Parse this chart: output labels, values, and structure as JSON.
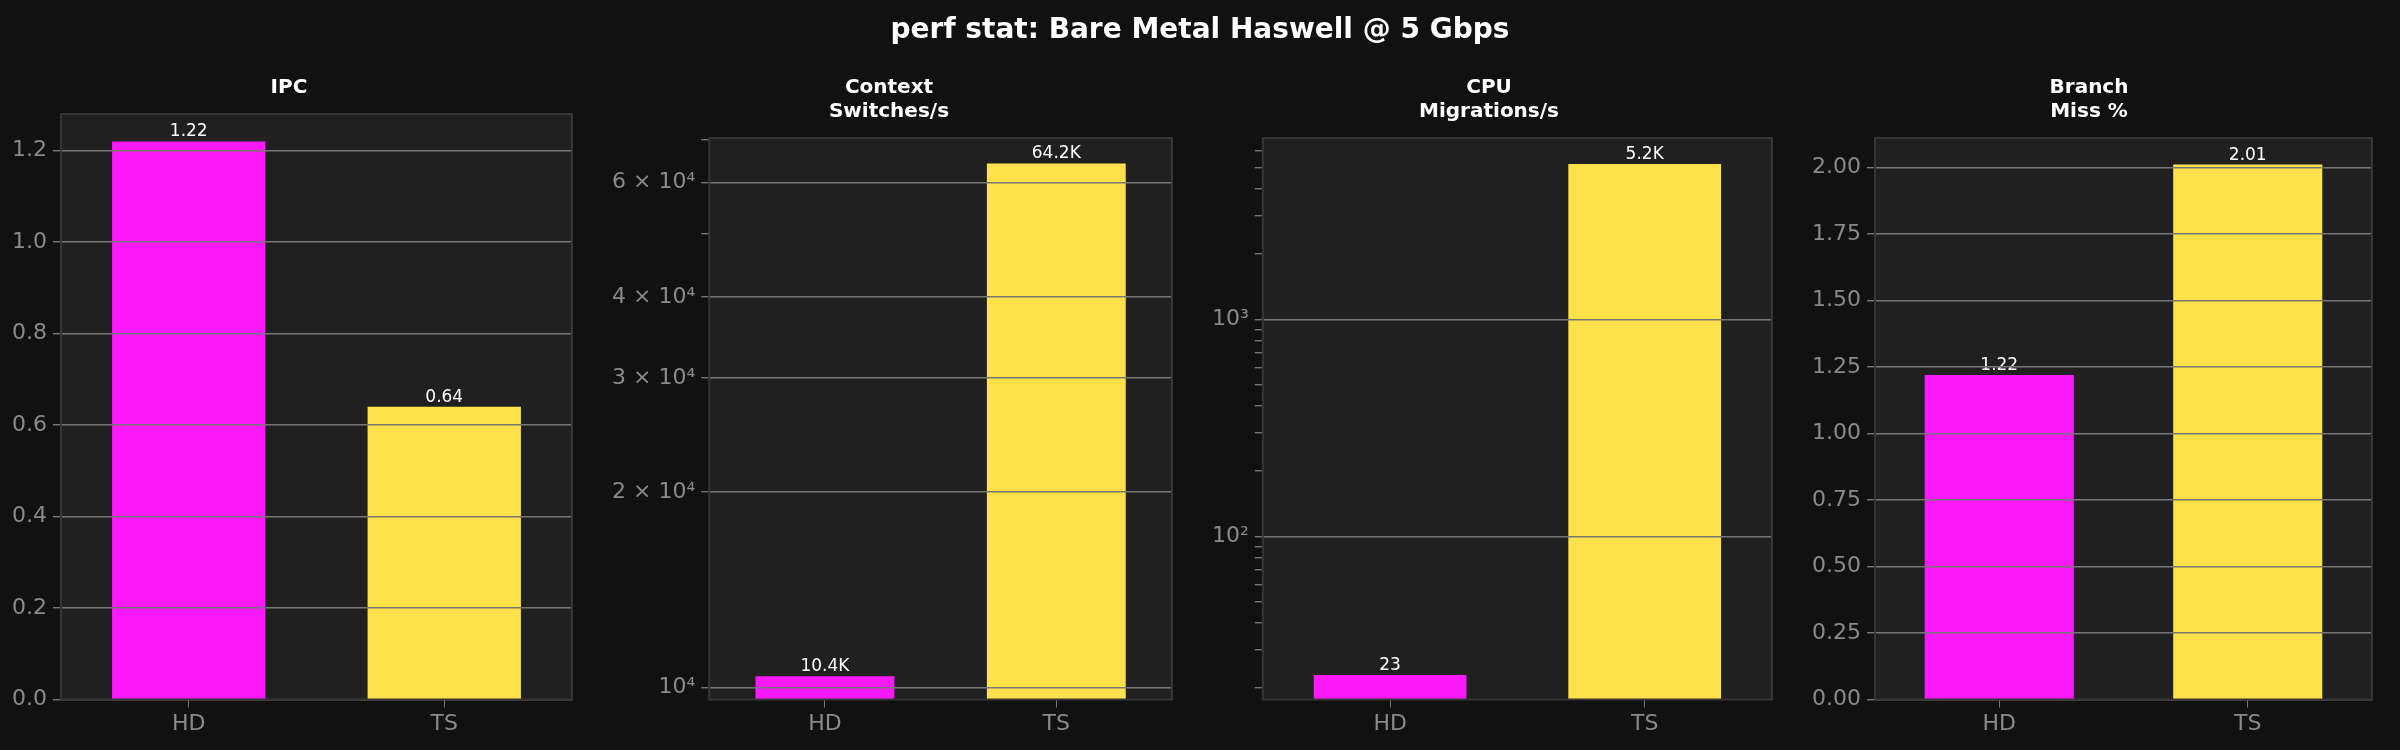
{
  "chart_data": [
    {
      "type": "bar",
      "title": "IPC",
      "annotations": [
        "perf stat: Bare Metal Haswell @ 5 Gbps"
      ],
      "categories": [
        "HD",
        "TS"
      ],
      "values": [
        1.22,
        0.64
      ],
      "colors": [
        "#fa1afa",
        "#ffe14a"
      ],
      "value_labels": [
        "1.22",
        "0.64"
      ],
      "ylim": [
        0,
        1.28
      ],
      "yticks": [
        {
          "value": 0,
          "label": "0.0"
        },
        0.2,
        0.4,
        0.6,
        0.8,
        {
          "value": 1,
          "label": "1.0"
        },
        1.2
      ],
      "grid": "y"
    },
    {
      "type": "bar",
      "title": "Context\nSwitches/s",
      "categories": [
        "HD",
        "TS"
      ],
      "values": [
        10400,
        64200
      ],
      "colors": [
        "#fa1afa",
        "#ffe14a"
      ],
      "value_labels": [
        "10.4K",
        "64.2K"
      ],
      "log": true,
      "ylim": [
        9570,
        70300
      ],
      "yticks": [
        {
          "value": 10000,
          "label": "10⁴"
        },
        {
          "value": 20000,
          "label": "2 × 10⁴"
        },
        {
          "value": 30000,
          "label": "3 × 10⁴"
        },
        {
          "value": 40000,
          "label": "4 × 10⁴"
        },
        {
          "value": 50000,
          "label": null
        },
        {
          "value": 60000,
          "label": "6 × 10⁴"
        },
        {
          "value": 70000,
          "label": null
        }
      ],
      "grid": "y"
    },
    {
      "type": "bar",
      "title": "CPU\nMigrations/s",
      "categories": [
        "HD",
        "TS"
      ],
      "values": [
        23,
        5200
      ],
      "colors": [
        "#fa1afa",
        "#ffe14a"
      ],
      "value_labels": [
        "23",
        "5.2K"
      ],
      "log": true,
      "ylim": [
        17.7,
        6850
      ],
      "yticks": [
        {
          "value": 20,
          "label": null
        },
        {
          "value": 30,
          "label": null
        },
        {
          "value": 40,
          "label": null
        },
        {
          "value": 50,
          "label": null
        },
        {
          "value": 60,
          "label": null
        },
        {
          "value": 70,
          "label": null
        },
        {
          "value": 80,
          "label": null
        },
        {
          "value": 90,
          "label": null
        },
        {
          "value": 100,
          "label": "10²"
        },
        {
          "value": 200,
          "label": null
        },
        {
          "value": 300,
          "label": null
        },
        {
          "value": 400,
          "label": null
        },
        {
          "value": 500,
          "label": null
        },
        {
          "value": 600,
          "label": null
        },
        {
          "value": 700,
          "label": null
        },
        {
          "value": 800,
          "label": null
        },
        {
          "value": 900,
          "label": null
        },
        {
          "value": 1000,
          "label": "10³"
        },
        {
          "value": 2000,
          "label": null
        },
        {
          "value": 3000,
          "label": null
        },
        {
          "value": 4000,
          "label": null
        },
        {
          "value": 5000,
          "label": null
        },
        {
          "value": 6000,
          "label": null
        }
      ],
      "grid": "y"
    },
    {
      "type": "bar",
      "title": "Branch\nMiss %",
      "categories": [
        "HD",
        "TS"
      ],
      "values": [
        1.22,
        2.01
      ],
      "colors": [
        "#fa1afa",
        "#ffe14a"
      ],
      "value_labels": [
        "1.22",
        "2.01"
      ],
      "ylim": [
        0,
        2.11
      ],
      "yticks": [
        {
          "value": 0,
          "label": "0.00"
        },
        0.25,
        {
          "value": 0.5,
          "label": "0.50"
        },
        0.75,
        {
          "value": 1,
          "label": "1.00"
        },
        1.25,
        {
          "value": 1.5,
          "label": "1.50"
        },
        1.75,
        {
          "value": 2,
          "label": "2.00"
        }
      ],
      "grid": "y"
    }
  ]
}
